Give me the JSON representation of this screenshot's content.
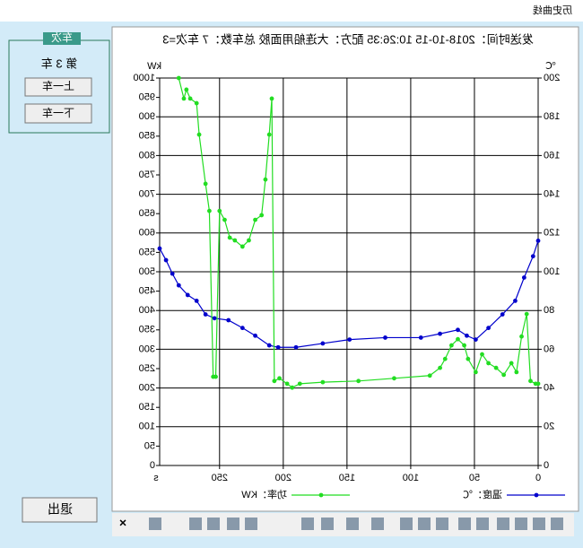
{
  "window": {
    "title": "历史曲线"
  },
  "panel": {
    "title": "车次",
    "label": "第 3 车",
    "buttons": [
      "上一车",
      "下一车"
    ]
  },
  "exit": "退出",
  "toolbar": {
    "close": "×"
  },
  "chart_data": {
    "type": "line",
    "title": "发送时间：2018-10-15 10:26:35 配方：大连船用面胶 总车数：7 车次=3",
    "x_label": "s",
    "y_label": "kW",
    "y2_label": "℃",
    "xlim": [
      0,
      297
    ],
    "xticks": [
      0,
      50,
      100,
      150,
      200,
      250
    ],
    "ylim": [
      0,
      1000
    ],
    "yticks": [
      0,
      50,
      100,
      150,
      200,
      250,
      300,
      350,
      400,
      450,
      500,
      550,
      600,
      650,
      700,
      750,
      800,
      850,
      900,
      950,
      1000
    ],
    "y2lim": [
      0,
      200
    ],
    "y2ticks": [
      0,
      20,
      40,
      60,
      80,
      100,
      120,
      140,
      160,
      180,
      200
    ],
    "grid": true,
    "series": [
      {
        "name": "温度：℃",
        "color": "#0000cc",
        "axis": "y2",
        "x": [
          0,
          4,
          11,
          18,
          28,
          39,
          49,
          56,
          63,
          77,
          92,
          120,
          148,
          169,
          190,
          204,
          211,
          222,
          232,
          243,
          254,
          261,
          268,
          275,
          282,
          287,
          292,
          297
        ],
        "values": [
          116,
          108,
          97,
          85,
          78,
          71,
          65,
          67,
          70,
          68,
          66,
          66,
          65,
          63,
          61,
          61,
          62,
          67,
          71,
          75,
          76,
          78,
          85,
          88,
          93,
          99,
          106,
          112
        ]
      },
      {
        "name": "功率：KW",
        "color": "#22dd22",
        "x": [
          0,
          2,
          6,
          9,
          13,
          17,
          21,
          27,
          33,
          39,
          44,
          49,
          55,
          58,
          63,
          68,
          73,
          77,
          85,
          113,
          141,
          169,
          187,
          193,
          197,
          203,
          207,
          209,
          211,
          214,
          217,
          222,
          227,
          232,
          238,
          242,
          246,
          250,
          253,
          255,
          258,
          261,
          266,
          268,
          273,
          276,
          278,
          282
        ],
        "values": [
          211,
          211,
          218,
          391,
          333,
          241,
          264,
          234,
          252,
          264,
          287,
          241,
          275,
          310,
          326,
          310,
          275,
          252,
          232,
          225,
          218,
          215,
          211,
          201,
          211,
          225,
          218,
          947,
          854,
          738,
          646,
          634,
          581,
          565,
          581,
          588,
          634,
          657,
          229,
          229,
          657,
          727,
          854,
          935,
          947,
          970,
          947,
          1000
        ]
      }
    ]
  }
}
